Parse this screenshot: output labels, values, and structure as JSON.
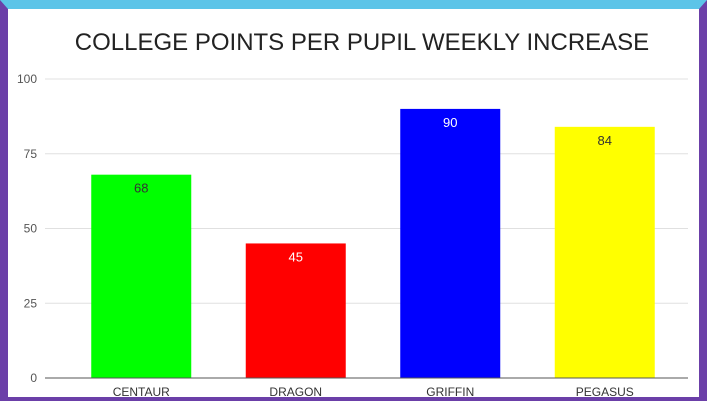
{
  "colors": {
    "frame_side": "#6b3fa8",
    "frame_top": "#5cc4e8"
  },
  "chart_data": {
    "type": "bar",
    "title": "COLLEGE POINTS PER PUPIL WEEKLY INCREASE",
    "xlabel": "",
    "ylabel": "",
    "categories": [
      "CENTAUR",
      "DRAGON",
      "GRIFFIN",
      "PEGASUS"
    ],
    "values": [
      68,
      45,
      90,
      84
    ],
    "bar_colors": [
      "#00ff00",
      "#ff0000",
      "#0000ff",
      "#ffff00"
    ],
    "label_colors": [
      "#333333",
      "#ffffff",
      "#ffffff",
      "#333333"
    ],
    "ylim": [
      0,
      100
    ],
    "yticks": [
      0,
      25,
      50,
      75,
      100
    ],
    "grid": true,
    "legend": "none"
  }
}
